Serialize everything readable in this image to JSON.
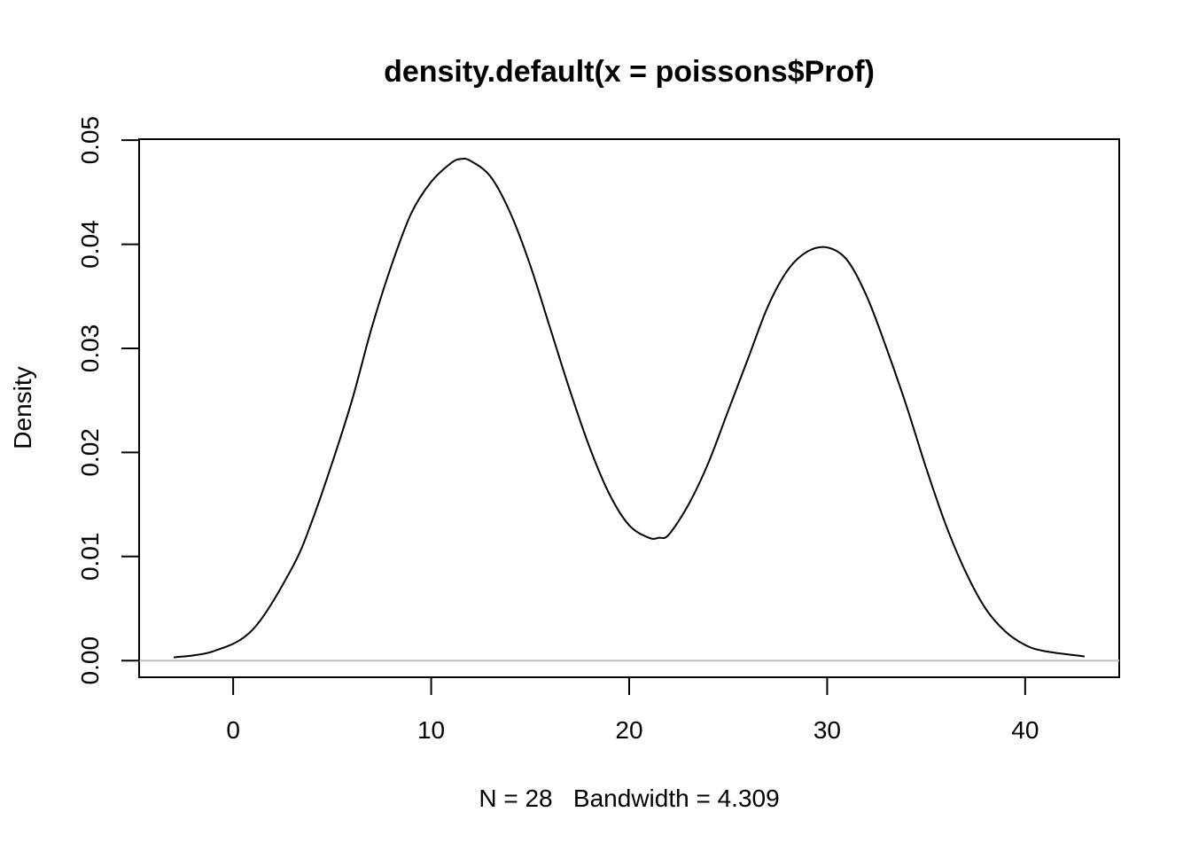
{
  "chart_data": {
    "type": "line",
    "title": "density.default(x = poissons$Prof)",
    "xlabel": "N = 28   Bandwidth = 4.309",
    "ylabel": "Density",
    "xlim": [
      -4.75,
      44.75
    ],
    "ylim": [
      -0.0016,
      0.0501
    ],
    "x_ticks": [
      0,
      10,
      20,
      30,
      40
    ],
    "x_tick_labels": [
      "0",
      "10",
      "20",
      "30",
      "40"
    ],
    "y_ticks": [
      0.0,
      0.01,
      0.02,
      0.03,
      0.04,
      0.05
    ],
    "y_tick_labels": [
      "0.00",
      "0.01",
      "0.02",
      "0.03",
      "0.04",
      "0.05"
    ],
    "grid": false,
    "zero_line": true,
    "series": [
      {
        "x": [
          -3,
          -1,
          1,
          3,
          4,
          5,
          6,
          7,
          8,
          9,
          10,
          11,
          11.5,
          12,
          13,
          14,
          15,
          16,
          17,
          18,
          19,
          20,
          21,
          21.5,
          22,
          23,
          24,
          25,
          26,
          27,
          28,
          29,
          30,
          31,
          32,
          33,
          34,
          35,
          36,
          37,
          38,
          39,
          40,
          41,
          43
        ],
        "y": [
          0.0003,
          0.0009,
          0.003,
          0.009,
          0.0135,
          0.019,
          0.025,
          0.032,
          0.038,
          0.043,
          0.046,
          0.0478,
          0.0482,
          0.048,
          0.0465,
          0.043,
          0.038,
          0.032,
          0.026,
          0.0205,
          0.016,
          0.013,
          0.0118,
          0.0118,
          0.0121,
          0.015,
          0.019,
          0.024,
          0.029,
          0.034,
          0.0375,
          0.0393,
          0.0397,
          0.0385,
          0.035,
          0.03,
          0.0245,
          0.0185,
          0.013,
          0.0085,
          0.005,
          0.0028,
          0.0015,
          0.0009,
          0.0004
        ]
      }
    ]
  }
}
